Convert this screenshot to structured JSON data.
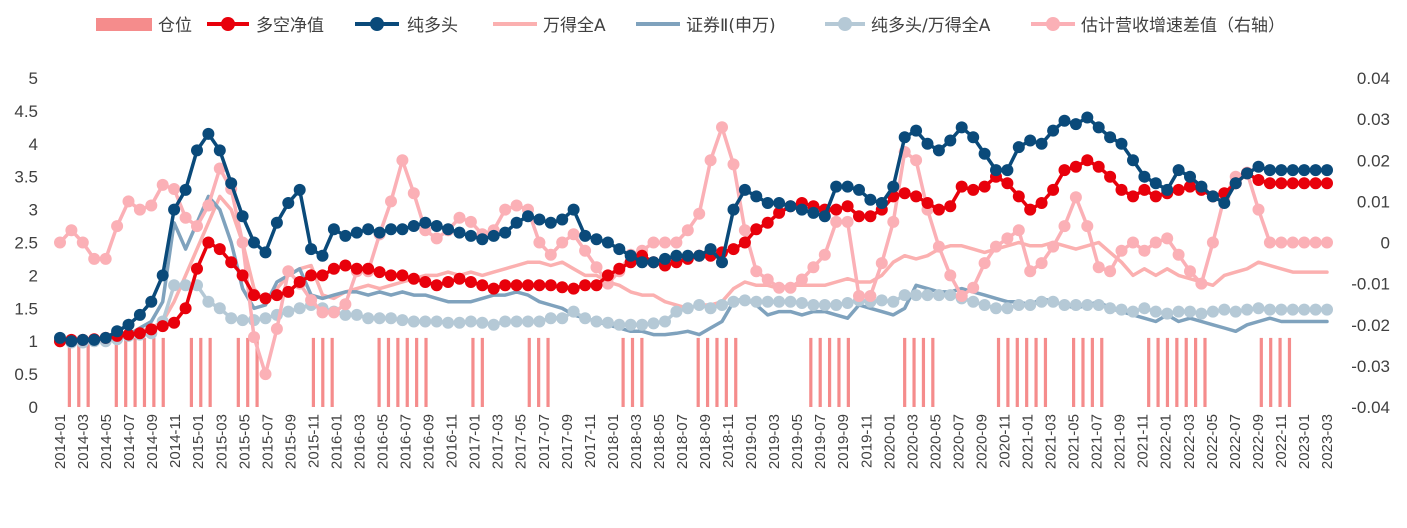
{
  "chart_data": {
    "type": "line",
    "title": "",
    "xlabel": "",
    "ylabel": "",
    "ylim": [
      0,
      5
    ],
    "y_ticks": [
      "0",
      "0.5",
      "1",
      "1.5",
      "2",
      "2.5",
      "3",
      "3.5",
      "4",
      "4.5",
      "5"
    ],
    "y2lim": [
      -0.04,
      0.04
    ],
    "y2_ticks": [
      "-0.04",
      "-0.03",
      "-0.02",
      "-0.01",
      "0",
      "0.01",
      "0.02",
      "0.03",
      "0.04"
    ],
    "x_tick_labels": [
      "2014-01",
      "2014-03",
      "2014-05",
      "2014-07",
      "2014-09",
      "2014-11",
      "2015-01",
      "2015-03",
      "2015-05",
      "2015-07",
      "2015-09",
      "2015-11",
      "2016-01",
      "2016-03",
      "2016-05",
      "2016-07",
      "2016-09",
      "2016-11",
      "2017-01",
      "2017-03",
      "2017-05",
      "2017-07",
      "2017-09",
      "2017-11",
      "2018-01",
      "2018-03",
      "2018-05",
      "2018-07",
      "2018-09",
      "2018-11",
      "2019-01",
      "2019-03",
      "2019-05",
      "2019-07",
      "2019-09",
      "2019-11",
      "2020-01",
      "2020-03",
      "2020-05",
      "2020-07",
      "2020-09",
      "2020-11",
      "2021-01",
      "2021-03",
      "2021-05",
      "2021-07",
      "2021-09",
      "2021-11",
      "2022-01",
      "2022-03",
      "2022-05",
      "2022-07",
      "2022-09",
      "2022-11",
      "2023-01",
      "2023-03"
    ],
    "months": 112,
    "legend": [
      "仓位",
      "多空净值",
      "纯多头",
      "万得全A",
      "证券Ⅱ(申万)",
      "纯多头/万得全A",
      "估计营收增速差值（右轴）"
    ],
    "colors": {
      "position": "#f58c8c",
      "longshort": "#e8000b",
      "purelong": "#0a4a7a",
      "wind_a": "#fbb0b0",
      "securities": "#7fa2bd",
      "ratio": "#b5c9d6",
      "diff": "#fbb0b6"
    },
    "series": [
      {
        "name": "仓位",
        "axis": "left",
        "type": "bar",
        "value": 1.05,
        "active_months": [
          1,
          2,
          3,
          6,
          7,
          8,
          9,
          10,
          11,
          14,
          15,
          16,
          19,
          20,
          21,
          27,
          28,
          29,
          34,
          35,
          36,
          37,
          38,
          39,
          44,
          45,
          50,
          51,
          52,
          60,
          61,
          62,
          68,
          69,
          70,
          71,
          72,
          80,
          81,
          82,
          83,
          84,
          90,
          91,
          92,
          93,
          100,
          101,
          102,
          103,
          104,
          105,
          108,
          109,
          110,
          111,
          116,
          117,
          118,
          119,
          120,
          121,
          122,
          128,
          129,
          130,
          131
        ]
      },
      {
        "name": "多空净值",
        "axis": "left",
        "type": "line",
        "values": [
          1.0,
          1.02,
          1.02,
          1.03,
          1.05,
          1.08,
          1.1,
          1.12,
          1.18,
          1.23,
          1.28,
          1.5,
          2.1,
          2.5,
          2.4,
          2.2,
          2.0,
          1.7,
          1.65,
          1.7,
          1.75,
          1.9,
          2.0,
          2.0,
          2.1,
          2.15,
          2.1,
          2.1,
          2.05,
          2.0,
          2.0,
          1.95,
          1.9,
          1.85,
          1.9,
          1.95,
          1.9,
          1.85,
          1.8,
          1.85,
          1.85,
          1.85,
          1.85,
          1.85,
          1.82,
          1.8,
          1.85,
          1.85,
          2.0,
          2.1,
          2.2,
          2.3,
          2.2,
          2.15,
          2.2,
          2.25,
          2.3,
          2.3,
          2.35,
          2.4,
          2.5,
          2.7,
          2.8,
          2.95,
          3.05,
          3.1,
          3.05,
          3.0,
          3.0,
          3.05,
          2.9,
          2.9,
          3.0,
          3.2,
          3.25,
          3.2,
          3.1,
          3.0,
          3.05,
          3.35,
          3.3,
          3.35,
          3.5,
          3.4,
          3.2,
          3.0,
          3.1,
          3.3,
          3.6,
          3.65,
          3.75,
          3.65,
          3.5,
          3.3,
          3.2,
          3.3,
          3.2,
          3.25,
          3.3,
          3.35,
          3.3,
          3.2,
          3.25,
          3.4,
          3.55,
          3.45,
          3.4,
          3.4,
          3.4,
          3.4,
          3.4,
          3.4
        ]
      },
      {
        "name": "纯多头",
        "axis": "left",
        "type": "line",
        "values": [
          1.05,
          1.0,
          1.02,
          1.02,
          1.05,
          1.15,
          1.25,
          1.4,
          1.6,
          2.0,
          3.0,
          3.3,
          3.9,
          4.15,
          3.9,
          3.4,
          2.9,
          2.5,
          2.35,
          2.8,
          3.1,
          3.3,
          2.4,
          2.3,
          2.7,
          2.6,
          2.65,
          2.7,
          2.65,
          2.7,
          2.7,
          2.75,
          2.8,
          2.75,
          2.7,
          2.65,
          2.6,
          2.55,
          2.6,
          2.65,
          2.8,
          2.9,
          2.85,
          2.8,
          2.85,
          3.0,
          2.6,
          2.55,
          2.5,
          2.4,
          2.3,
          2.2,
          2.2,
          2.25,
          2.3,
          2.3,
          2.3,
          2.4,
          2.2,
          3.0,
          3.3,
          3.2,
          3.1,
          3.1,
          3.05,
          3.0,
          2.95,
          2.9,
          3.35,
          3.35,
          3.3,
          3.15,
          3.1,
          3.35,
          4.1,
          4.2,
          4.0,
          3.9,
          4.05,
          4.25,
          4.1,
          3.85,
          3.6,
          3.6,
          3.95,
          4.05,
          4.0,
          4.2,
          4.35,
          4.3,
          4.4,
          4.25,
          4.1,
          4.0,
          3.75,
          3.5,
          3.4,
          3.3,
          3.6,
          3.5,
          3.35,
          3.2,
          3.1,
          3.4,
          3.55,
          3.65,
          3.6,
          3.6,
          3.6,
          3.6,
          3.6,
          3.6
        ]
      },
      {
        "name": "万得全A",
        "axis": "left",
        "type": "line",
        "values": [
          1.0,
          1.0,
          1.02,
          1.03,
          1.05,
          1.08,
          1.1,
          1.15,
          1.2,
          1.3,
          1.6,
          2.0,
          2.4,
          2.8,
          3.2,
          3.0,
          2.5,
          1.8,
          1.6,
          1.8,
          2.0,
          2.1,
          2.15,
          1.7,
          1.65,
          1.75,
          1.8,
          1.85,
          1.8,
          1.85,
          1.9,
          1.95,
          2.0,
          2.0,
          2.05,
          2.0,
          2.05,
          2.0,
          2.05,
          2.1,
          2.15,
          2.2,
          2.2,
          2.15,
          2.2,
          2.1,
          2.0,
          2.0,
          1.9,
          1.85,
          1.75,
          1.7,
          1.7,
          1.6,
          1.55,
          1.5,
          1.55,
          1.55,
          1.6,
          1.8,
          1.9,
          1.85,
          1.85,
          1.8,
          1.85,
          1.85,
          1.85,
          1.85,
          1.9,
          1.95,
          1.9,
          1.9,
          2.0,
          2.2,
          2.3,
          2.25,
          2.3,
          2.4,
          2.45,
          2.45,
          2.4,
          2.35,
          2.4,
          2.45,
          2.5,
          2.45,
          2.45,
          2.5,
          2.45,
          2.4,
          2.45,
          2.5,
          2.35,
          2.2,
          2.0,
          2.1,
          2.0,
          2.1,
          2.0,
          1.95,
          1.9,
          1.85,
          2.0,
          2.05,
          2.1,
          2.2,
          2.15,
          2.1,
          2.05,
          2.05,
          2.05,
          2.05
        ]
      },
      {
        "name": "证券Ⅱ(申万)",
        "axis": "left",
        "type": "line",
        "values": [
          1.0,
          1.0,
          1.0,
          1.0,
          1.0,
          1.05,
          1.1,
          1.2,
          1.3,
          1.6,
          2.8,
          2.4,
          2.8,
          3.2,
          3.0,
          2.5,
          1.8,
          1.5,
          1.55,
          1.9,
          2.0,
          2.1,
          1.7,
          1.65,
          1.7,
          1.75,
          1.75,
          1.7,
          1.75,
          1.7,
          1.75,
          1.7,
          1.7,
          1.65,
          1.6,
          1.6,
          1.6,
          1.65,
          1.7,
          1.7,
          1.75,
          1.7,
          1.6,
          1.55,
          1.5,
          1.4,
          1.35,
          1.3,
          1.25,
          1.2,
          1.15,
          1.15,
          1.1,
          1.1,
          1.12,
          1.15,
          1.1,
          1.2,
          1.3,
          1.6,
          1.65,
          1.55,
          1.4,
          1.45,
          1.45,
          1.4,
          1.45,
          1.45,
          1.4,
          1.35,
          1.55,
          1.5,
          1.45,
          1.4,
          1.5,
          1.85,
          1.8,
          1.75,
          1.75,
          1.8,
          1.75,
          1.7,
          1.65,
          1.6,
          1.6,
          1.55,
          1.65,
          1.6,
          1.55,
          1.5,
          1.55,
          1.6,
          1.5,
          1.45,
          1.4,
          1.35,
          1.3,
          1.4,
          1.3,
          1.35,
          1.3,
          1.25,
          1.2,
          1.15,
          1.25,
          1.3,
          1.35,
          1.3,
          1.3,
          1.3,
          1.3,
          1.3
        ]
      },
      {
        "name": "纯多头/万得全A",
        "axis": "left",
        "type": "line",
        "values": [
          1.0,
          0.98,
          0.98,
          1.0,
          1.0,
          1.03,
          1.08,
          1.1,
          1.12,
          1.3,
          1.85,
          1.85,
          1.85,
          1.6,
          1.5,
          1.35,
          1.32,
          1.32,
          1.35,
          1.4,
          1.45,
          1.5,
          1.55,
          1.5,
          1.45,
          1.4,
          1.4,
          1.35,
          1.35,
          1.35,
          1.32,
          1.3,
          1.3,
          1.3,
          1.28,
          1.28,
          1.3,
          1.28,
          1.25,
          1.3,
          1.3,
          1.3,
          1.3,
          1.35,
          1.35,
          1.45,
          1.35,
          1.3,
          1.28,
          1.25,
          1.25,
          1.25,
          1.27,
          1.3,
          1.45,
          1.5,
          1.55,
          1.5,
          1.55,
          1.6,
          1.62,
          1.6,
          1.6,
          1.6,
          1.6,
          1.58,
          1.55,
          1.55,
          1.55,
          1.58,
          1.62,
          1.6,
          1.62,
          1.6,
          1.7,
          1.7,
          1.7,
          1.7,
          1.7,
          1.65,
          1.6,
          1.55,
          1.5,
          1.5,
          1.55,
          1.55,
          1.6,
          1.6,
          1.55,
          1.55,
          1.55,
          1.55,
          1.5,
          1.48,
          1.45,
          1.5,
          1.45,
          1.42,
          1.45,
          1.45,
          1.42,
          1.45,
          1.48,
          1.45,
          1.48,
          1.5,
          1.48,
          1.48,
          1.48,
          1.48,
          1.48,
          1.48
        ]
      },
      {
        "name": "估计营收增速差值（右轴）",
        "axis": "right",
        "type": "line",
        "values": [
          0.0,
          0.003,
          0.0,
          -0.004,
          -0.004,
          0.004,
          0.01,
          0.008,
          0.009,
          0.014,
          0.013,
          0.006,
          0.004,
          0.009,
          0.018,
          0.013,
          0.0,
          -0.023,
          -0.032,
          -0.021,
          -0.007,
          -0.01,
          -0.014,
          -0.017,
          -0.017,
          -0.015,
          -0.007,
          -0.007,
          0.002,
          0.01,
          0.02,
          0.012,
          0.003,
          0.001,
          0.003,
          0.006,
          0.005,
          0.002,
          0.003,
          0.008,
          0.009,
          0.008,
          0.0,
          -0.003,
          0.0,
          0.002,
          -0.002,
          -0.006,
          -0.01,
          -0.007,
          -0.003,
          -0.002,
          0.0,
          0.0,
          0.0,
          0.003,
          0.007,
          0.02,
          0.028,
          0.019,
          0.003,
          -0.007,
          -0.009,
          -0.011,
          -0.011,
          -0.009,
          -0.006,
          -0.003,
          0.005,
          0.005,
          -0.013,
          -0.013,
          -0.005,
          0.005,
          0.022,
          0.02,
          0.008,
          -0.001,
          -0.008,
          -0.013,
          -0.011,
          -0.005,
          -0.001,
          0.001,
          0.003,
          -0.007,
          -0.005,
          -0.001,
          0.004,
          0.011,
          0.004,
          -0.006,
          -0.007,
          -0.002,
          0.0,
          -0.002,
          0.0,
          0.001,
          -0.003,
          -0.007,
          -0.01,
          0.0,
          0.011,
          0.016,
          0.017,
          0.008,
          0.0,
          0.0,
          0.0,
          0.0,
          0.0,
          0.0
        ]
      }
    ]
  }
}
